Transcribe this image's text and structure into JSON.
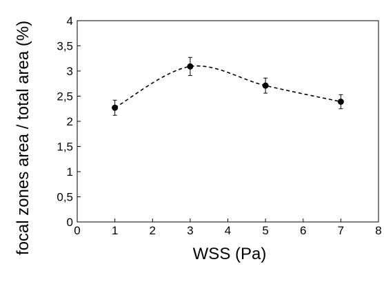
{
  "chart_data": {
    "type": "line",
    "xlabel": "WSS (Pa)",
    "ylabel": "focal zones area / total area (%)",
    "xlim": [
      0,
      8
    ],
    "ylim": [
      0,
      4
    ],
    "x_ticks": [
      "0",
      "1",
      "2",
      "3",
      "4",
      "5",
      "6",
      "7",
      "8"
    ],
    "y_ticks": [
      "0",
      "0,5",
      "1",
      "1,5",
      "2",
      "2,5",
      "3",
      "3,5",
      "4"
    ],
    "grid": false,
    "legend": "none",
    "line_style": "dashed, smooth",
    "marker": "filled circle",
    "series": [
      {
        "x": [
          1,
          3,
          5,
          7
        ],
        "y": [
          2.27,
          3.09,
          2.71,
          2.39
        ],
        "error": [
          0.15,
          0.18,
          0.15,
          0.14
        ]
      }
    ],
    "colors": {
      "line": "#000000",
      "marker": "#000000",
      "axis": "#000000"
    }
  }
}
